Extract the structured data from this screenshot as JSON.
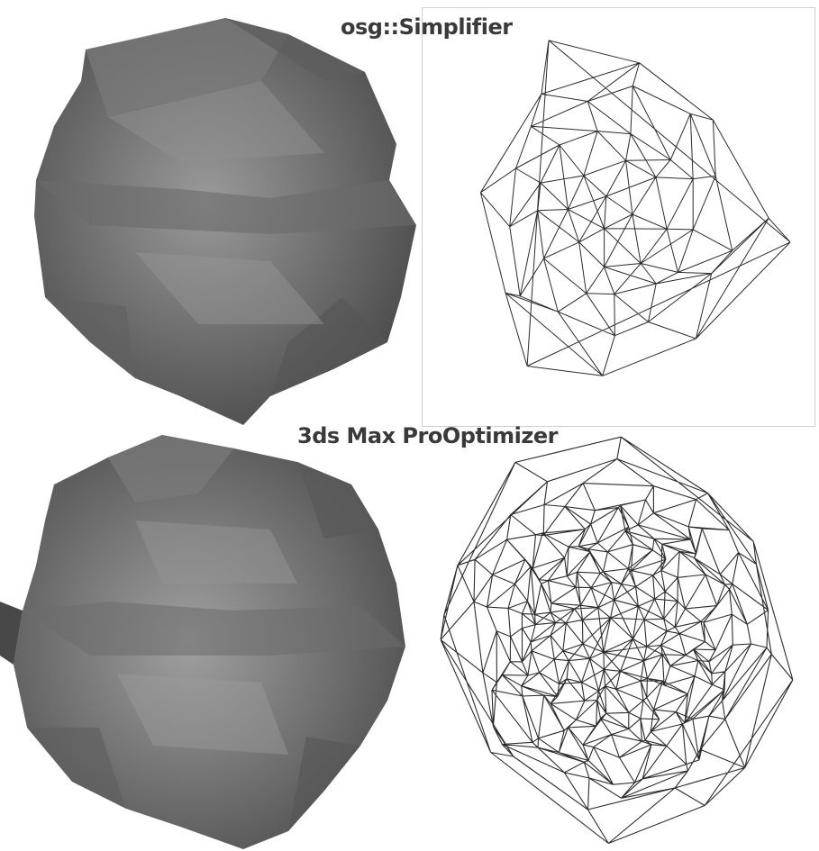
{
  "labels": {
    "top": "osg::Simplifier",
    "bottom": "3ds  Max ProOptimizer"
  },
  "colors": {
    "rock_dark": "#3c3c3c",
    "rock_mid": "#7a7a7a",
    "rock_light": "#a8a8a8",
    "wire": "#2b2b2b",
    "label": "#3a3a3a",
    "background": "#ffffff"
  },
  "icons": [
    "shaded-rock-render",
    "wireframe-rock-render"
  ]
}
